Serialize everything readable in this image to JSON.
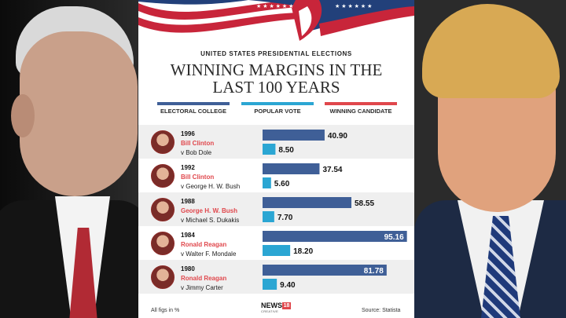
{
  "header": {
    "kicker": "UNITED STATES PRESIDENTIAL ELECTIONS",
    "title_line1": "WINNING MARGINS IN THE",
    "title_line2": "LAST 100 YEARS"
  },
  "legend": [
    {
      "label": "ELECTORAL COLLEGE",
      "color": "#3f5f97"
    },
    {
      "label": "POPULAR VOTE",
      "color": "#2ba6d3"
    },
    {
      "label": "WINNING CANDIDATE",
      "color": "#e0474c"
    }
  ],
  "elections": [
    {
      "year": "1996",
      "winner": "Bill Clinton",
      "opponent": "v Bob Dole"
    },
    {
      "year": "1992",
      "winner": "Bill Clinton",
      "opponent": "v George H. W. Bush"
    },
    {
      "year": "1988",
      "winner": "George H. W. Bush",
      "opponent": "v Michael S. Dukakis"
    },
    {
      "year": "1984",
      "winner": "Ronald Reagan",
      "opponent": "v Walter F. Mondale"
    },
    {
      "year": "1980",
      "winner": "Ronald Reagan",
      "opponent": "v Jimmy Carter"
    }
  ],
  "chart_data": {
    "type": "bar",
    "orientation": "horizontal",
    "title": "WINNING MARGINS IN THE LAST 100 YEARS",
    "categories": [
      "1996",
      "1992",
      "1988",
      "1984",
      "1980"
    ],
    "series": [
      {
        "name": "ELECTORAL COLLEGE",
        "values": [
          40.9,
          37.54,
          58.55,
          95.16,
          81.78
        ],
        "labels": [
          "40.90",
          "37.54",
          "58.55",
          "95.16",
          "81.78"
        ]
      },
      {
        "name": "POPULAR VOTE",
        "values": [
          8.5,
          5.6,
          7.7,
          18.2,
          9.4
        ],
        "labels": [
          "8.50",
          "5.60",
          "7.70",
          "18.20",
          "9.40"
        ]
      }
    ],
    "unit": "%",
    "xlim": [
      0,
      100
    ],
    "colors": {
      "electoral": "#3f5f97",
      "popular": "#2ba6d3"
    }
  },
  "footer": {
    "note": "All figs in %",
    "source": "Source: Statista",
    "brand_name": "NEWS",
    "brand_number": "18",
    "brand_tagline": "CREATIVE"
  },
  "flag_colors": {
    "red": "#c8253a",
    "blue": "#22407a"
  }
}
